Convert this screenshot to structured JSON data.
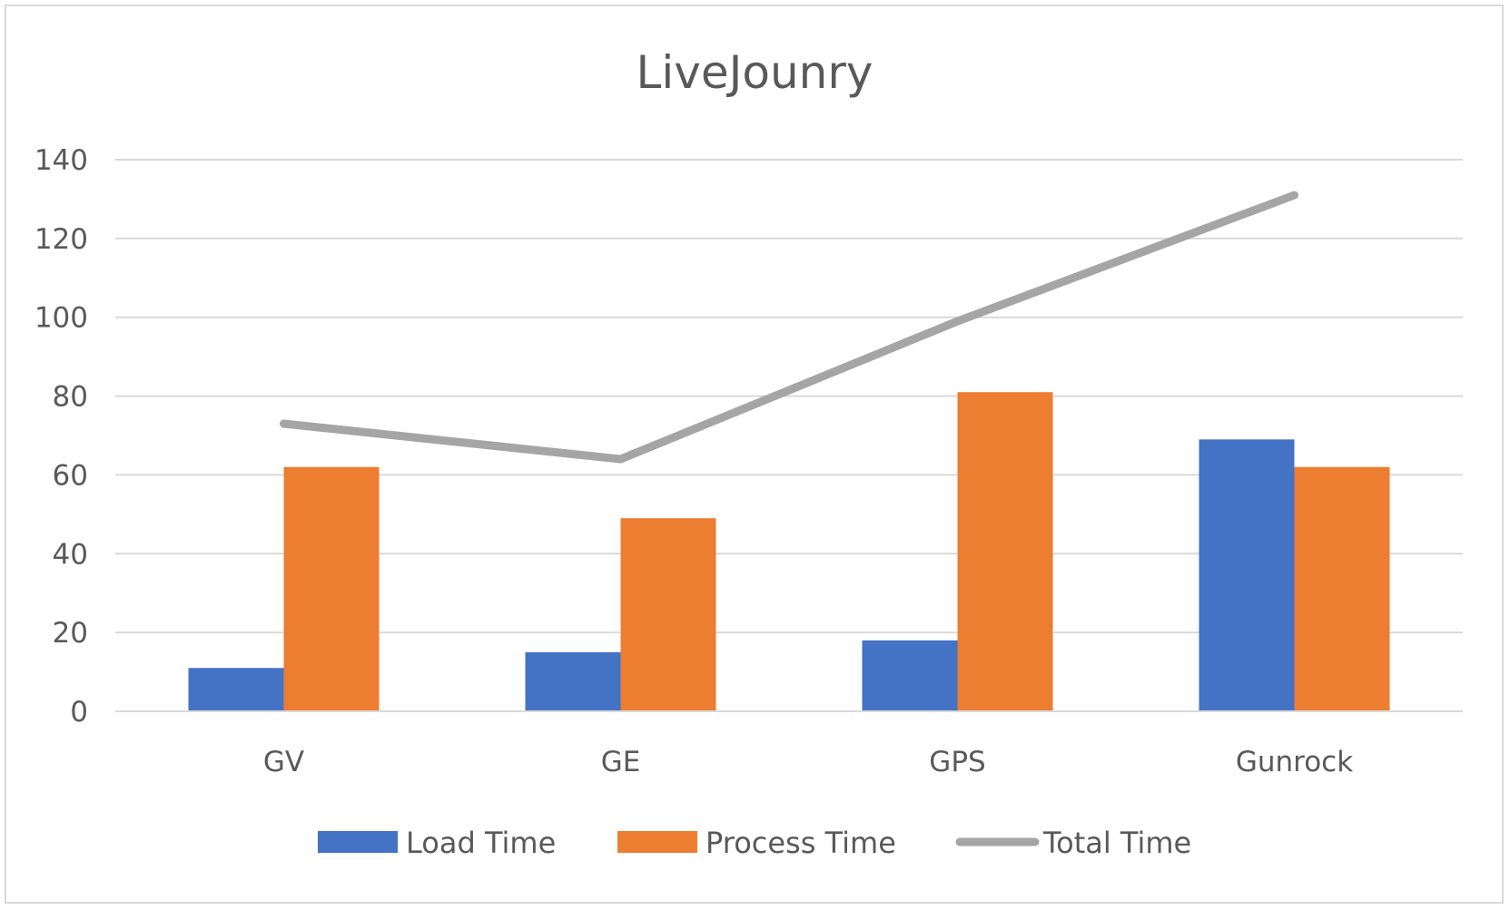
{
  "chart_data": {
    "type": "bar",
    "title": "LiveJounry",
    "xlabel": "",
    "ylabel": "",
    "categories": [
      "GV",
      "GE",
      "GPS",
      "Gunrock"
    ],
    "ylim": [
      0,
      140
    ],
    "yticks": [
      0,
      20,
      40,
      60,
      80,
      100,
      120,
      140
    ],
    "grid": true,
    "legend_position": "bottom",
    "series": [
      {
        "name": "Load Time",
        "type": "bar",
        "color": "#4472C4",
        "values": [
          11,
          15,
          18,
          69
        ]
      },
      {
        "name": "Process Time",
        "type": "bar",
        "color": "#ED7D31",
        "values": [
          62,
          49,
          81,
          62
        ]
      },
      {
        "name": "Total Time",
        "type": "line",
        "color": "#A5A5A5",
        "values": [
          73,
          64,
          99,
          131
        ]
      }
    ]
  }
}
